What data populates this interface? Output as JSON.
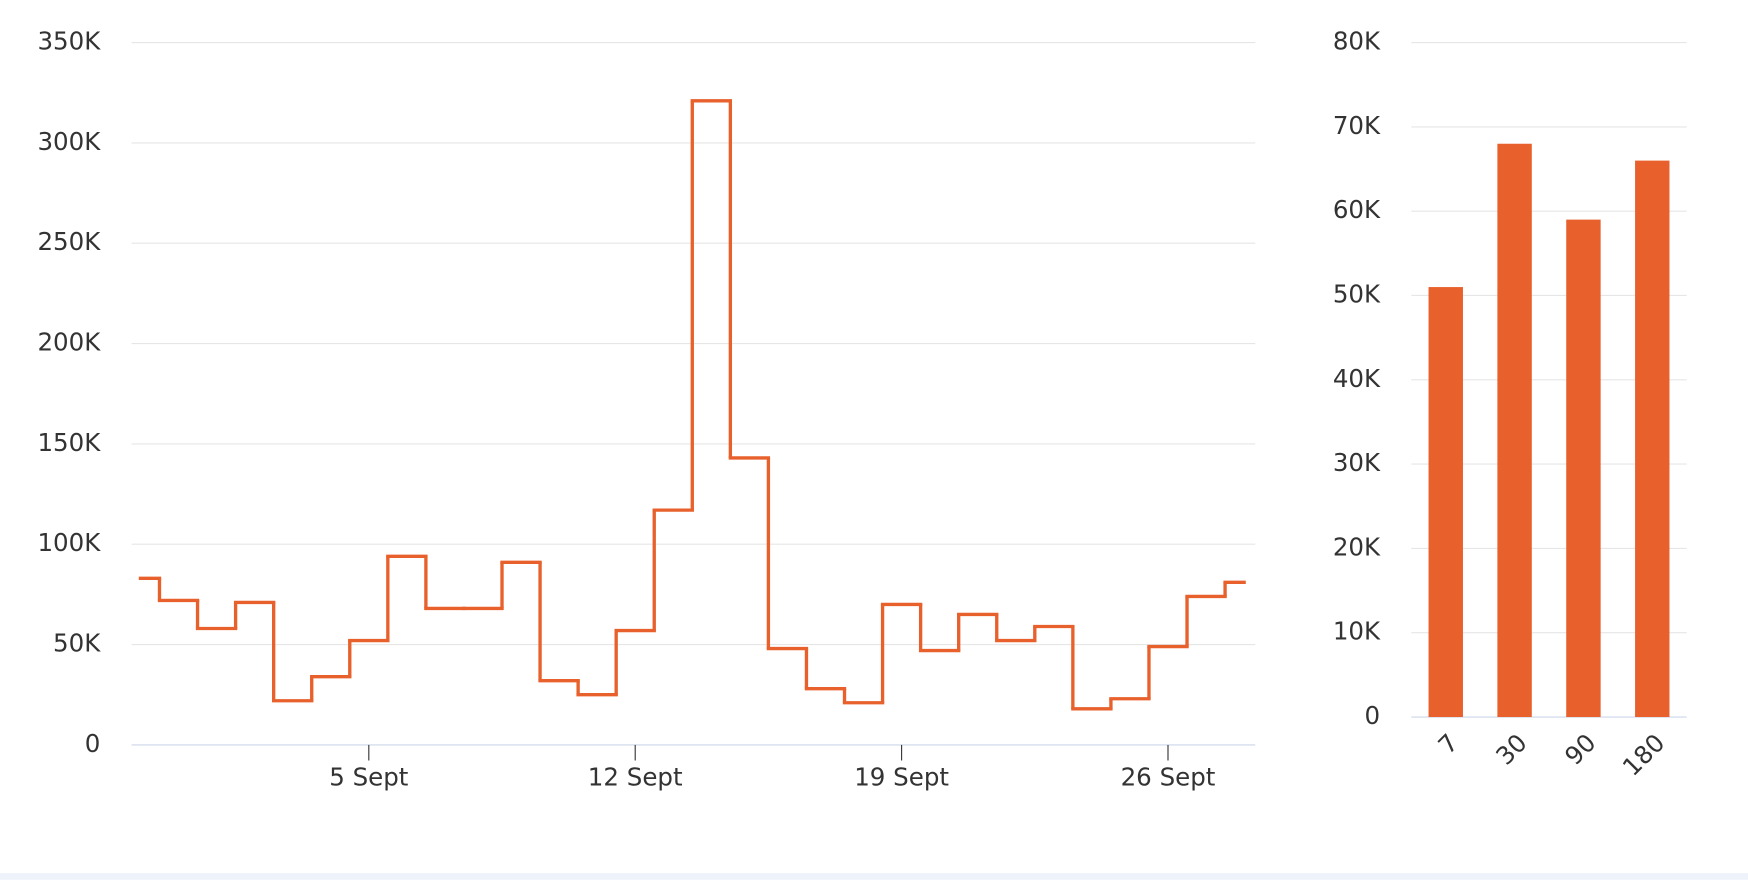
{
  "chart_data": [
    {
      "type": "line",
      "step": "center",
      "categories": [
        null,
        null,
        null,
        null,
        null,
        null,
        "5 Sept",
        null,
        null,
        null,
        null,
        null,
        null,
        "12 Sept",
        null,
        null,
        null,
        null,
        null,
        null,
        "19 Sept",
        null,
        null,
        null,
        null,
        null,
        null,
        "26 Sept",
        null,
        null
      ],
      "values": [
        83000,
        72000,
        58000,
        71000,
        22000,
        34000,
        52000,
        94000,
        68000,
        68000,
        91000,
        32000,
        25000,
        57000,
        117000,
        321000,
        143000,
        48000,
        28000,
        21000,
        70000,
        47000,
        65000,
        52000,
        59000,
        18000,
        23000,
        49000,
        74000,
        81000
      ],
      "color": "#e8612c",
      "ylim": [
        0,
        350000
      ],
      "yticks": [
        0,
        {
          "value": 50000,
          "label": "50K"
        },
        {
          "value": 100000,
          "label": "100K"
        },
        {
          "value": 150000,
          "label": "150K"
        },
        {
          "value": 200000,
          "label": "200K"
        },
        {
          "value": 250000,
          "label": "250K"
        },
        {
          "value": 300000,
          "label": "300K"
        },
        {
          "value": 350000,
          "label": "350K"
        }
      ],
      "grid": true
    },
    {
      "type": "bar",
      "categories": [
        "7",
        "30",
        "90",
        "180"
      ],
      "values": [
        51000,
        68000,
        59000,
        66000
      ],
      "color": "#e8612c",
      "ylim": [
        0,
        80000
      ],
      "yticks": [
        0,
        {
          "value": 10000,
          "label": "10K"
        },
        {
          "value": 20000,
          "label": "20K"
        },
        {
          "value": 30000,
          "label": "30K"
        },
        {
          "value": 40000,
          "label": "40K"
        },
        {
          "value": 50000,
          "label": "50K"
        },
        {
          "value": 60000,
          "label": "60K"
        },
        {
          "value": 70000,
          "label": "70K"
        },
        {
          "value": 80000,
          "label": "80K"
        }
      ],
      "grid": true
    }
  ]
}
